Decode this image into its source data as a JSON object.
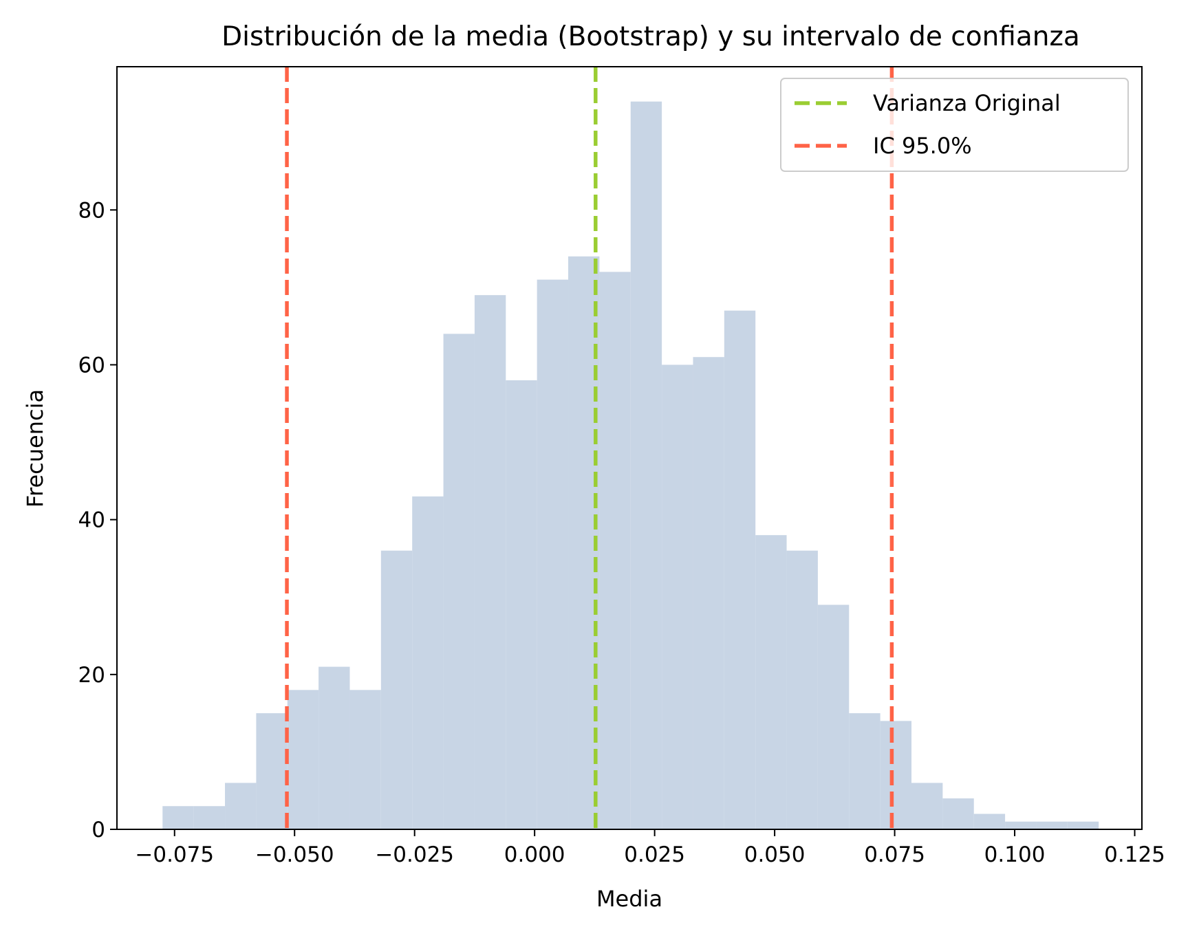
{
  "chart_data": {
    "type": "bar",
    "title": "Distribución de la media (Bootstrap) y su intervalo de confianza",
    "xlabel": "Media",
    "ylabel": "Frecuencia",
    "xlim": [
      -0.087,
      0.1265
    ],
    "ylim": [
      0,
      98.5
    ],
    "x_ticks": [
      -0.075,
      -0.05,
      -0.025,
      0.0,
      0.025,
      0.05,
      0.075,
      0.1,
      0.125
    ],
    "x_tick_labels": [
      "−0.075",
      "−0.050",
      "−0.025",
      "0.000",
      "0.025",
      "0.050",
      "0.075",
      "0.100",
      "0.125"
    ],
    "y_ticks": [
      0,
      20,
      40,
      60,
      80
    ],
    "y_tick_labels": [
      "0",
      "20",
      "40",
      "60",
      "80"
    ],
    "bin_range": [
      -0.0775,
      0.1175
    ],
    "bin_counts": [
      3,
      3,
      6,
      15,
      18,
      21,
      18,
      36,
      43,
      64,
      69,
      58,
      71,
      74,
      72,
      94,
      60,
      61,
      67,
      38,
      36,
      29,
      15,
      14,
      6,
      4,
      2,
      1,
      1,
      1
    ],
    "bar_color": "#c8d5e5",
    "reference_lines": [
      {
        "x": 0.0127,
        "color": "#9acd32",
        "style": "dashed"
      },
      {
        "x": -0.0516,
        "color": "#ff6347",
        "style": "dashed"
      },
      {
        "x": 0.0744,
        "color": "#ff6347",
        "style": "dashed"
      }
    ],
    "legend": {
      "placement": "top-right",
      "entries": [
        {
          "label": "Varianza Original",
          "color": "#9acd32",
          "style": "dashed"
        },
        {
          "label": "IC 95.0%",
          "color": "#ff6347",
          "style": "dashed"
        }
      ]
    },
    "grid": false
  }
}
